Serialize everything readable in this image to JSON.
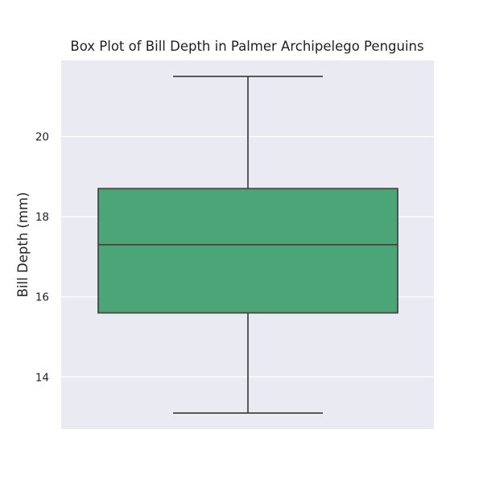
{
  "chart_data": {
    "type": "box",
    "title": "Box Plot of Bill Depth in Palmer Archipelego Penguins",
    "xlabel": "",
    "ylabel": "Bill Depth (mm)",
    "ylim": [
      12.7,
      21.9
    ],
    "yticks": [
      14,
      16,
      18,
      20
    ],
    "grid": true,
    "orientation": "vertical",
    "box": {
      "whisker_low": 13.1,
      "q1": 15.6,
      "median": 17.3,
      "q3": 18.7,
      "whisker_high": 21.5
    },
    "colors": {
      "plot_background": "#EAEAF2",
      "box_fill": "#4CA577",
      "line": "#444444",
      "grid": "#FFFFFF"
    }
  }
}
